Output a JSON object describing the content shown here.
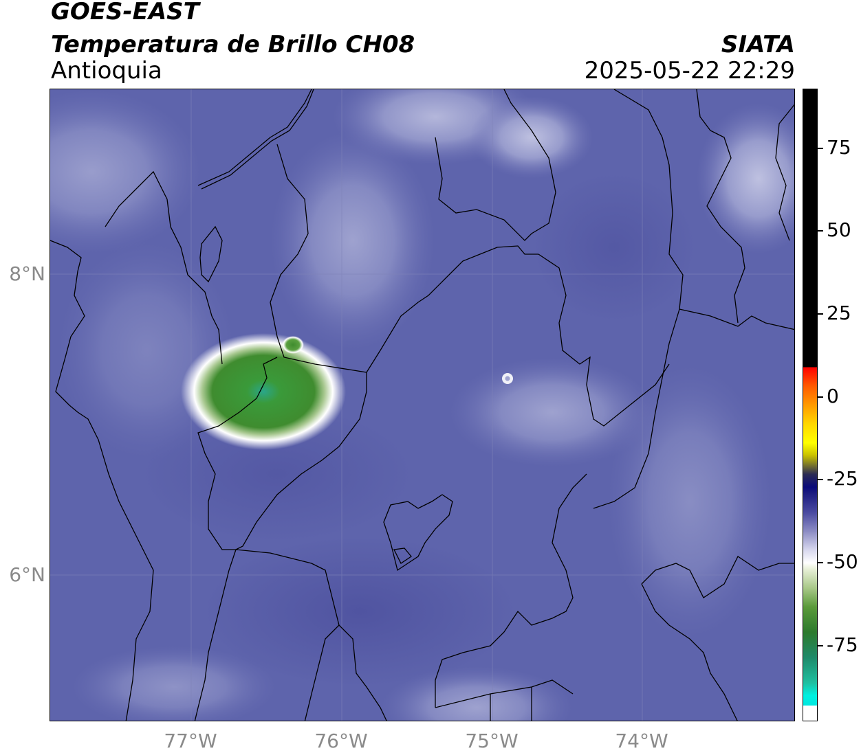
{
  "header": {
    "line1": "GOES-EAST",
    "line2": "Temperatura de Brillo CH08",
    "region": "Antioquia",
    "agency": "SIATA",
    "datetime": "2025-05-22 22:29"
  },
  "map": {
    "lat_labels": [
      "8°N",
      "6°N"
    ],
    "lon_labels": [
      "77°W",
      "76°W",
      "75°W",
      "74°W"
    ],
    "background_color": "#5e64ac",
    "cloud_colors": [
      "#ffffff",
      "#3f8c2f",
      "#2aa68a"
    ]
  },
  "colorbar": {
    "tick_labels": [
      "75",
      "50",
      "25",
      "0",
      "-25",
      "-50",
      "-75"
    ],
    "colors": [
      "#000000",
      "#ff0000",
      "#ffd700",
      "#0a0a7a",
      "#ffffff",
      "#2d7a2d",
      "#00f0e0"
    ]
  }
}
